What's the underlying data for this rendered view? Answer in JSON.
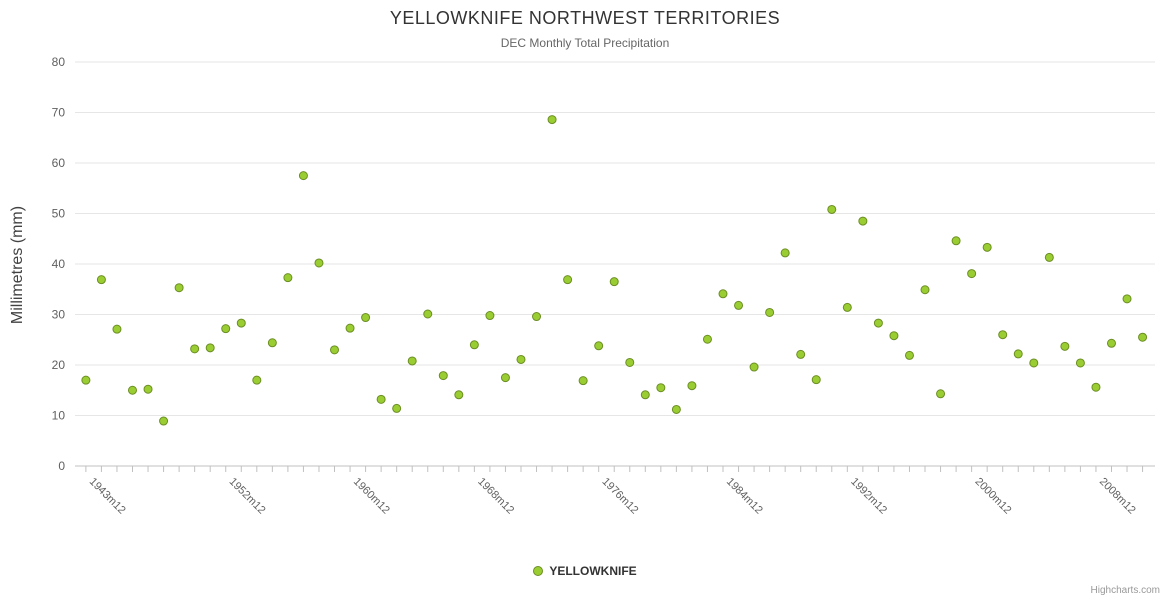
{
  "page": {
    "title": "YELLOWKNIFE NORTHWEST TERRITORIES",
    "subtitle": "DEC Monthly Total Precipitation",
    "y_axis_title": "Millimetres (mm)",
    "legend_label": "YELLOWKNIFE",
    "credits": "Highcharts.com"
  },
  "chart_data": {
    "type": "scatter",
    "title": "YELLOWKNIFE NORTHWEST TERRITORIES",
    "subtitle": "DEC Monthly Total Precipitation",
    "xlabel": "",
    "ylabel": "Millimetres (mm)",
    "ylim": [
      0,
      80
    ],
    "y_tick_step": 10,
    "xlim": [
      1942.3,
      2011.8
    ],
    "grid": true,
    "legend_position": "bottom-center",
    "x_tick_labels": [
      {
        "x": 1943,
        "label": "1943m12"
      },
      {
        "x": 1952,
        "label": "1952m12"
      },
      {
        "x": 1960,
        "label": "1960m12"
      },
      {
        "x": 1968,
        "label": "1968m12"
      },
      {
        "x": 1976,
        "label": "1976m12"
      },
      {
        "x": 1984,
        "label": "1984m12"
      },
      {
        "x": 1992,
        "label": "1992m12"
      },
      {
        "x": 2000,
        "label": "2000m12"
      },
      {
        "x": 2008,
        "label": "2008m12"
      }
    ],
    "series": [
      {
        "name": "YELLOWKNIFE",
        "color": "#9acd32",
        "border_color": "#6b8e23",
        "points": [
          [
            1943,
            17.0
          ],
          [
            1944,
            36.9
          ],
          [
            1945,
            27.1
          ],
          [
            1946,
            15.0
          ],
          [
            1947,
            15.2
          ],
          [
            1948,
            8.9
          ],
          [
            1949,
            35.3
          ],
          [
            1950,
            23.2
          ],
          [
            1951,
            23.4
          ],
          [
            1952,
            27.2
          ],
          [
            1953,
            28.3
          ],
          [
            1954,
            17.0
          ],
          [
            1955,
            24.4
          ],
          [
            1956,
            37.3
          ],
          [
            1957,
            57.5
          ],
          [
            1958,
            40.2
          ],
          [
            1959,
            23.0
          ],
          [
            1960,
            27.3
          ],
          [
            1961,
            29.4
          ],
          [
            1962,
            13.2
          ],
          [
            1963,
            11.4
          ],
          [
            1964,
            20.8
          ],
          [
            1965,
            30.1
          ],
          [
            1966,
            17.9
          ],
          [
            1967,
            14.1
          ],
          [
            1968,
            24.0
          ],
          [
            1969,
            29.8
          ],
          [
            1970,
            17.5
          ],
          [
            1971,
            21.1
          ],
          [
            1972,
            29.6
          ],
          [
            1973,
            68.6
          ],
          [
            1974,
            36.9
          ],
          [
            1975,
            16.9
          ],
          [
            1976,
            23.8
          ],
          [
            1977,
            36.5
          ],
          [
            1978,
            20.5
          ],
          [
            1979,
            14.1
          ],
          [
            1980,
            15.5
          ],
          [
            1981,
            11.2
          ],
          [
            1982,
            15.9
          ],
          [
            1983,
            25.1
          ],
          [
            1984,
            34.1
          ],
          [
            1985,
            31.8
          ],
          [
            1986,
            19.6
          ],
          [
            1987,
            30.4
          ],
          [
            1988,
            42.2
          ],
          [
            1989,
            22.1
          ],
          [
            1990,
            17.1
          ],
          [
            1991,
            50.8
          ],
          [
            1992,
            31.4
          ],
          [
            1993,
            48.5
          ],
          [
            1994,
            28.3
          ],
          [
            1995,
            25.8
          ],
          [
            1996,
            21.9
          ],
          [
            1997,
            34.9
          ],
          [
            1998,
            14.3
          ],
          [
            1999,
            44.6
          ],
          [
            2000,
            38.1
          ],
          [
            2001,
            43.3
          ],
          [
            2002,
            26.0
          ],
          [
            2003,
            22.2
          ],
          [
            2004,
            20.4
          ],
          [
            2005,
            41.3
          ],
          [
            2006,
            23.7
          ],
          [
            2007,
            20.4
          ],
          [
            2008,
            15.6
          ],
          [
            2009,
            24.3
          ],
          [
            2010,
            33.1
          ],
          [
            2011,
            25.5
          ]
        ]
      }
    ]
  }
}
